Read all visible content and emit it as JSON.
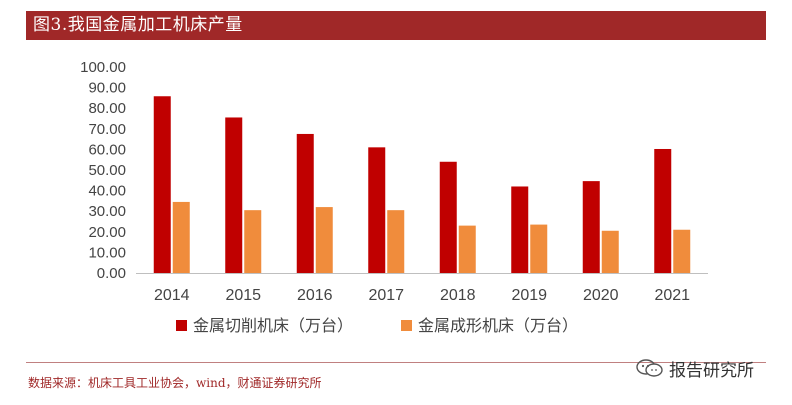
{
  "header": {
    "title": "图3.我国金属加工机床产量"
  },
  "chart_data": {
    "type": "bar",
    "categories": [
      "2014",
      "2015",
      "2016",
      "2017",
      "2018",
      "2019",
      "2020",
      "2021"
    ],
    "series": [
      {
        "name": "金属切削机床（万台）",
        "color": "#c00000",
        "values": [
          85.8,
          75.5,
          67.5,
          61.0,
          54.0,
          42.0,
          44.6,
          60.2
        ]
      },
      {
        "name": "金属成形机床（万台）",
        "color": "#f08c3c",
        "values": [
          34.5,
          30.5,
          32.0,
          30.5,
          23.0,
          23.5,
          20.5,
          21.0
        ]
      }
    ],
    "ylim": [
      0,
      100
    ],
    "yticks": [
      "0.00",
      "10.00",
      "20.00",
      "30.00",
      "40.00",
      "50.00",
      "60.00",
      "70.00",
      "80.00",
      "90.00",
      "100.00"
    ],
    "legend_position": "bottom"
  },
  "footer": {
    "source": "数据来源：机床工具工业协会，wind，财通证券研究所"
  },
  "watermark": {
    "text": "报告研究所",
    "icon": "wechat-icon"
  }
}
